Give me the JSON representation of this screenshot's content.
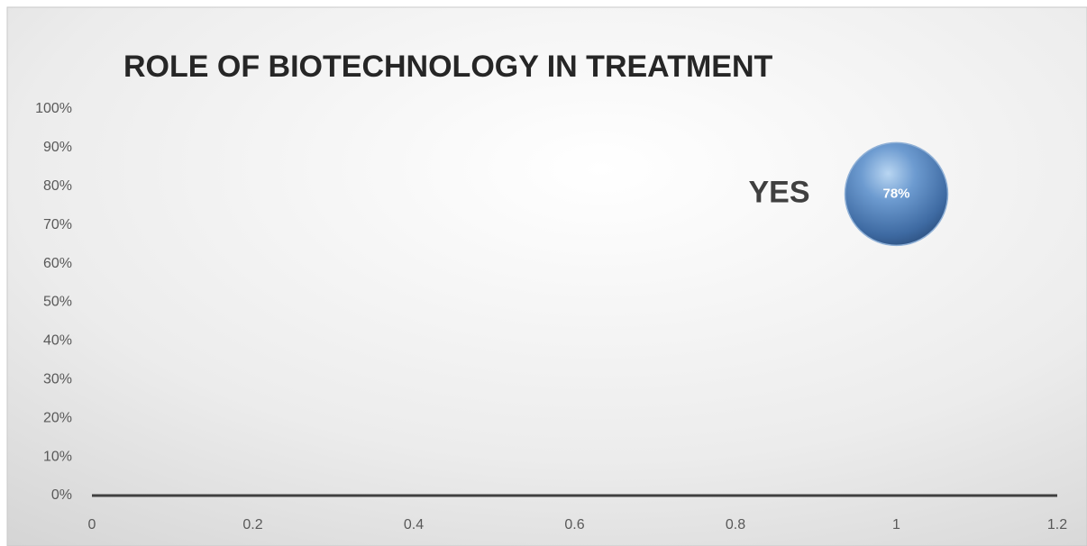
{
  "chart_data": {
    "type": "scatter",
    "title": "ROLE OF BIOTECHNOLOGY IN TREATMENT",
    "series": [
      {
        "name": "YES",
        "color": "#4f81bd",
        "x": [
          1
        ],
        "values": [
          78
        ],
        "value_labels": [
          "78%"
        ]
      }
    ],
    "xlim": [
      0,
      1.2
    ],
    "xticks": [
      0,
      0.2,
      0.4,
      0.6,
      0.8,
      1,
      1.2
    ],
    "ylim": [
      0,
      100
    ],
    "yticks": [
      {
        "value": 0,
        "label": "0%"
      },
      {
        "value": 10,
        "label": "10%"
      },
      {
        "value": 20,
        "label": "20%"
      },
      {
        "value": 30,
        "label": "30%"
      },
      {
        "value": 40,
        "label": "40%"
      },
      {
        "value": 50,
        "label": "50%"
      },
      {
        "value": 60,
        "label": "60%"
      },
      {
        "value": 70,
        "label": "70%"
      },
      {
        "value": 80,
        "label": "80%"
      },
      {
        "value": 90,
        "label": "90%"
      },
      {
        "value": 100,
        "label": "100%"
      }
    ],
    "grid": false
  }
}
